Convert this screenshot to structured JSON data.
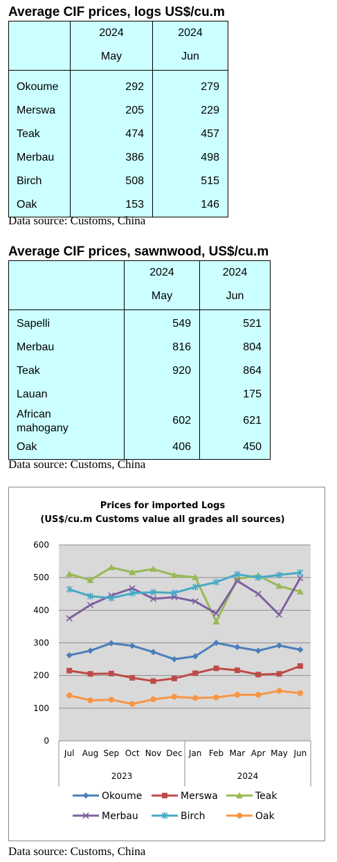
{
  "logs": {
    "title": "Average CIF prices, logs US$/cu.m",
    "columns": [
      {
        "year": "2024",
        "month": "May"
      },
      {
        "year": "2024",
        "month": "Jun"
      }
    ],
    "rows": [
      {
        "label": "Okoume",
        "may": "292",
        "jun": "279"
      },
      {
        "label": "Merswa",
        "may": "205",
        "jun": "229"
      },
      {
        "label": "Teak",
        "may": "474",
        "jun": "457"
      },
      {
        "label": "Merbau",
        "may": "386",
        "jun": "498"
      },
      {
        "label": "Birch",
        "may": "508",
        "jun": "515"
      },
      {
        "label": "Oak",
        "may": "153",
        "jun": "146"
      }
    ],
    "source": "Data source: Customs, China"
  },
  "sawnwood": {
    "title": "Average CIF prices, sawnwood, US$/cu.m",
    "columns": [
      {
        "year": "2024",
        "month": "May"
      },
      {
        "year": "2024",
        "month": "Jun"
      }
    ],
    "rows": [
      {
        "label": "Sapelli",
        "may": "549",
        "jun": "521"
      },
      {
        "label": "Merbau",
        "may": "816",
        "jun": "804"
      },
      {
        "label": "Teak",
        "may": "920",
        "jun": "864"
      },
      {
        "label": "Lauan",
        "may": "",
        "jun": "175"
      },
      {
        "label_line1": "African",
        "label_line2": "mahogany",
        "may": "602",
        "jun": "621"
      },
      {
        "label": "Oak",
        "may": "406",
        "jun": "450"
      }
    ],
    "source": "Data source: Customs, China"
  },
  "chart_data": {
    "type": "line",
    "title_line1": "Prices for imported Logs",
    "title_line2": "(US$/cu.m Customs value all grades all sources)",
    "categories": [
      "Jul",
      "Aug",
      "Sep",
      "Oct",
      "Nov",
      "Dec",
      "Jan",
      "Feb",
      "Mar",
      "Apr",
      "May",
      "Jun"
    ],
    "year_groups": [
      {
        "label": "2023",
        "start": 0,
        "end": 5
      },
      {
        "label": "2024",
        "start": 6,
        "end": 11
      }
    ],
    "ylim": [
      0,
      600
    ],
    "yticks": [
      "0",
      "100",
      "200",
      "300",
      "400",
      "500",
      "600"
    ],
    "grid": true,
    "legend_position": "bottom",
    "series": [
      {
        "name": "Okoume",
        "color": "#4a7ebb",
        "marker": "diamond",
        "values": [
          262,
          276,
          299,
          291,
          272,
          250,
          259,
          300,
          287,
          276,
          292,
          279
        ]
      },
      {
        "name": "Merswa",
        "color": "#be4b48",
        "marker": "square",
        "values": [
          215,
          205,
          206,
          193,
          183,
          191,
          207,
          222,
          216,
          203,
          205,
          229
        ]
      },
      {
        "name": "Teak",
        "color": "#98b954",
        "marker": "triangle",
        "values": [
          511,
          492,
          531,
          516,
          526,
          507,
          501,
          365,
          496,
          506,
          474,
          457
        ]
      },
      {
        "name": "Merbau",
        "color": "#7d60a0",
        "marker": "x",
        "values": [
          375,
          416,
          445,
          467,
          435,
          440,
          427,
          390,
          490,
          450,
          386,
          498
        ]
      },
      {
        "name": "Birch",
        "color": "#46aac5",
        "marker": "star",
        "values": [
          464,
          443,
          437,
          452,
          455,
          453,
          471,
          486,
          510,
          500,
          508,
          515
        ]
      },
      {
        "name": "Oak",
        "color": "#f79646",
        "marker": "circle",
        "values": [
          139,
          124,
          126,
          113,
          127,
          135,
          131,
          133,
          141,
          141,
          153,
          146
        ]
      }
    ]
  },
  "chart_source": "Data source: Customs, China"
}
